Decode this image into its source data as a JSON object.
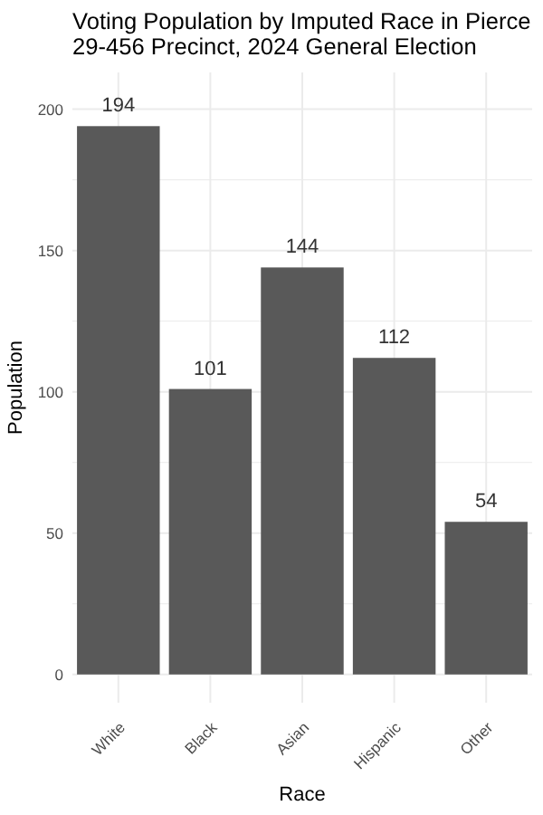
{
  "chart_data": {
    "type": "bar",
    "title": "Voting Population by Imputed Race in Pierce\n29-456 Precinct,  2024 General Election",
    "xlabel": "Race",
    "ylabel": "Population",
    "categories": [
      "White",
      "Black",
      "Asian",
      "Hispanic",
      "Other"
    ],
    "values": [
      194,
      101,
      144,
      112,
      54
    ],
    "color": "#595959",
    "data_labels": true,
    "ylim": [
      -10,
      213
    ],
    "yticks": [
      0,
      {
        "value": 25,
        "label": null
      },
      50,
      {
        "value": 75,
        "label": null
      },
      100,
      {
        "value": 125,
        "label": null
      },
      150,
      {
        "value": 175,
        "label": null
      },
      200
    ],
    "grid": true
  }
}
